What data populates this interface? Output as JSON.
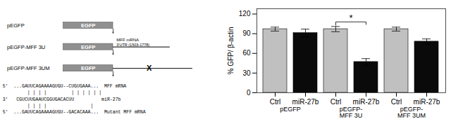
{
  "chart_data": [
    {
      "type": "diagram",
      "color": "#909090",
      "annotations": [
        "pEGFP",
        "pEGFP-MFF 3U",
        "pEGFP-MFF 3UM",
        "EGFP",
        "MFF mRNA",
        "3'UTR (1503-1778)",
        "X",
        "5'  ...GAUUCAGAAAAGUGU--CUGUGAAA...  MFF mRNA",
        "         | | | |         | | | | | |",
        "3'   CGUCUUGAAUCGGUGACACUU          miR-27b",
        "         | | | |                |",
        "5'  ...GAUUCAGAAAAGUGU--GACACAAA...  Mutant MFF mRNA"
      ]
    },
    {
      "type": "bar",
      "categories": [
        "pEGFP",
        "pEGFP-\nMFF 3U",
        "pEGFP-\nMFF 3UM"
      ],
      "series": [
        {
          "name": "Ctrl",
          "color": "#c0c0c0",
          "values": [
            97,
            97,
            97
          ],
          "errors": [
            3,
            4,
            3
          ]
        },
        {
          "name": "miR-27b",
          "color": "#0a0a0a",
          "values": [
            91,
            47,
            78
          ],
          "errors": [
            6,
            5,
            4
          ]
        }
      ],
      "ylabel": "% GFP/ β-actin",
      "ylim": [
        0,
        128
      ],
      "yticks": [
        0,
        30,
        60,
        90,
        120
      ],
      "annotations": [
        {
          "text": "*",
          "category": "pEGFP-\nMFF 3U"
        }
      ]
    }
  ]
}
